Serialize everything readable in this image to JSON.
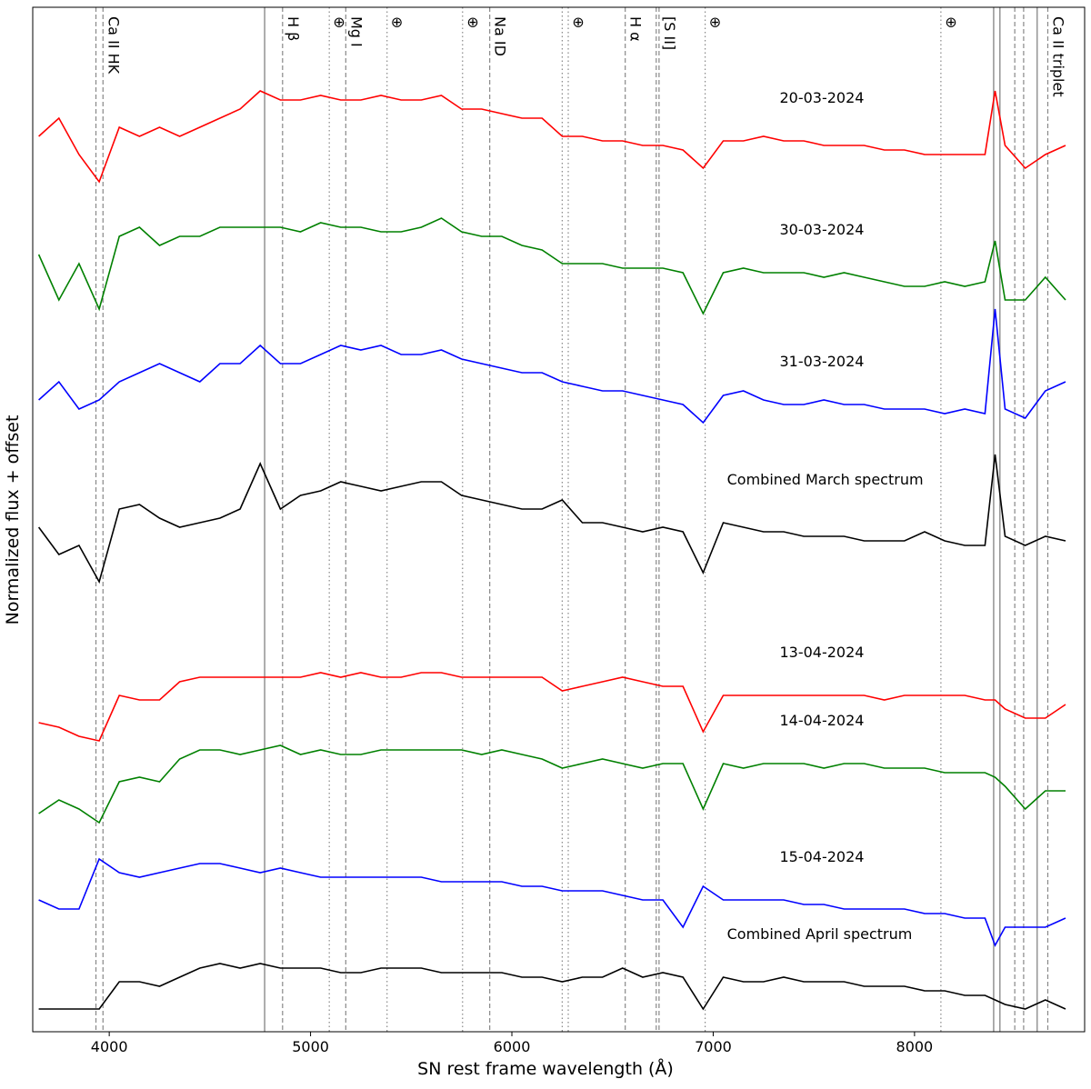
{
  "chart_data": {
    "type": "line",
    "xlabel": "SN rest frame wavelength (Å)",
    "ylabel": "Normalized flux + offset",
    "xlim": [
      3620,
      8845
    ],
    "ylim": [
      0,
      1127
    ],
    "xticks": [
      4000,
      5000,
      6000,
      7000,
      8000
    ],
    "x": [
      3650,
      3750,
      3850,
      3950,
      4050,
      4150,
      4250,
      4350,
      4450,
      4550,
      4650,
      4750,
      4850,
      4950,
      5050,
      5150,
      5250,
      5350,
      5450,
      5550,
      5650,
      5750,
      5850,
      5950,
      6050,
      6150,
      6250,
      6350,
      6450,
      6550,
      6650,
      6750,
      6850,
      6950,
      7050,
      7150,
      7250,
      7350,
      7450,
      7550,
      7650,
      7750,
      7850,
      7950,
      8050,
      8150,
      8250,
      8350,
      8400,
      8450,
      8550,
      8650,
      8750
    ],
    "series": [
      {
        "name": "20-03-2024",
        "color": "#ff0000",
        "values": [
          985,
          1005,
          965,
          935,
          995,
          985,
          995,
          985,
          995,
          1005,
          1015,
          1035,
          1025,
          1025,
          1030,
          1025,
          1025,
          1030,
          1025,
          1025,
          1030,
          1015,
          1015,
          1010,
          1005,
          1005,
          985,
          985,
          980,
          980,
          975,
          975,
          970,
          950,
          980,
          980,
          985,
          980,
          980,
          975,
          975,
          975,
          970,
          970,
          965,
          965,
          965,
          965,
          1035,
          975,
          950,
          965,
          975
        ]
      },
      {
        "name": "30-03-2024",
        "color": "#008000",
        "values": [
          855,
          805,
          845,
          795,
          875,
          885,
          865,
          875,
          875,
          885,
          885,
          885,
          885,
          880,
          890,
          885,
          885,
          880,
          880,
          885,
          895,
          880,
          875,
          875,
          865,
          860,
          845,
          845,
          845,
          840,
          840,
          840,
          835,
          790,
          835,
          840,
          835,
          835,
          835,
          830,
          835,
          830,
          825,
          820,
          820,
          825,
          820,
          825,
          870,
          805,
          805,
          830,
          805
        ]
      },
      {
        "name": "31-03-2024",
        "color": "#0000ff",
        "values": [
          695,
          715,
          685,
          695,
          715,
          725,
          735,
          725,
          715,
          735,
          735,
          755,
          735,
          735,
          745,
          755,
          750,
          755,
          745,
          745,
          750,
          740,
          735,
          730,
          725,
          725,
          715,
          710,
          705,
          705,
          700,
          695,
          690,
          670,
          700,
          705,
          695,
          690,
          690,
          695,
          690,
          690,
          685,
          685,
          685,
          680,
          685,
          680,
          795,
          685,
          675,
          705,
          715
        ]
      },
      {
        "name": "Combined March spectrum",
        "color": "#000000",
        "values": [
          555,
          525,
          535,
          495,
          575,
          580,
          565,
          555,
          560,
          565,
          575,
          625,
          575,
          590,
          595,
          605,
          600,
          595,
          600,
          605,
          605,
          590,
          585,
          580,
          575,
          575,
          585,
          560,
          560,
          555,
          550,
          555,
          550,
          505,
          560,
          555,
          550,
          550,
          545,
          545,
          545,
          540,
          540,
          540,
          550,
          540,
          535,
          535,
          635,
          545,
          535,
          545,
          540
        ]
      },
      {
        "name": "13-04-2024",
        "color": "#ff0000",
        "values": [
          340,
          335,
          325,
          320,
          370,
          365,
          365,
          385,
          390,
          390,
          390,
          390,
          390,
          390,
          395,
          390,
          395,
          390,
          390,
          395,
          395,
          390,
          390,
          390,
          390,
          390,
          375,
          380,
          385,
          390,
          385,
          380,
          380,
          330,
          370,
          370,
          370,
          370,
          370,
          370,
          370,
          370,
          365,
          370,
          370,
          370,
          370,
          365,
          365,
          355,
          345,
          345,
          360
        ]
      },
      {
        "name": "14-04-2024",
        "color": "#008000",
        "values": [
          240,
          255,
          245,
          230,
          275,
          280,
          275,
          300,
          310,
          310,
          305,
          310,
          315,
          305,
          310,
          305,
          305,
          310,
          310,
          310,
          310,
          310,
          305,
          310,
          305,
          300,
          290,
          295,
          300,
          295,
          290,
          295,
          295,
          245,
          295,
          290,
          295,
          295,
          295,
          290,
          295,
          295,
          290,
          290,
          290,
          285,
          285,
          285,
          280,
          270,
          245,
          265,
          265
        ]
      },
      {
        "name": "15-04-2024",
        "color": "#0000ff",
        "values": [
          145,
          135,
          135,
          190,
          175,
          170,
          175,
          180,
          185,
          185,
          180,
          175,
          180,
          175,
          170,
          170,
          170,
          170,
          170,
          170,
          165,
          165,
          165,
          165,
          160,
          160,
          155,
          155,
          155,
          150,
          145,
          145,
          115,
          160,
          145,
          145,
          145,
          145,
          140,
          140,
          135,
          135,
          135,
          135,
          130,
          130,
          125,
          125,
          95,
          115,
          115,
          115,
          125
        ]
      },
      {
        "name": "Combined April spectrum",
        "color": "#000000",
        "values": [
          25,
          25,
          25,
          25,
          55,
          55,
          50,
          60,
          70,
          75,
          70,
          75,
          70,
          70,
          70,
          65,
          65,
          70,
          70,
          70,
          65,
          65,
          65,
          65,
          60,
          60,
          55,
          60,
          60,
          70,
          60,
          65,
          60,
          25,
          60,
          55,
          55,
          60,
          55,
          55,
          55,
          50,
          50,
          50,
          45,
          45,
          40,
          40,
          35,
          30,
          25,
          35,
          25
        ]
      }
    ],
    "vlines": [
      {
        "x": 3934,
        "style": "dashed"
      },
      {
        "x": 3969,
        "style": "dashed",
        "label": "Ca II HK"
      },
      {
        "x": 4772,
        "style": "solid"
      },
      {
        "x": 4861,
        "style": "dashed",
        "label": "H β"
      },
      {
        "x": 5093,
        "style": "dotted",
        "label": "⊕"
      },
      {
        "x": 5175,
        "style": "dashed",
        "label": "Mg I"
      },
      {
        "x": 5380,
        "style": "dotted",
        "label": "⊕"
      },
      {
        "x": 5755,
        "style": "dotted",
        "label": "⊕"
      },
      {
        "x": 5890,
        "style": "dashed",
        "label": "Na ID"
      },
      {
        "x": 6250,
        "style": "dotted"
      },
      {
        "x": 6280,
        "style": "dotted",
        "label": "⊕"
      },
      {
        "x": 6563,
        "style": "dashed",
        "label": "H α"
      },
      {
        "x": 6717,
        "style": "dashed"
      },
      {
        "x": 6731,
        "style": "dashed",
        "label": "[S II]"
      },
      {
        "x": 6960,
        "style": "dotted",
        "label": "⊕"
      },
      {
        "x": 8131,
        "style": "dotted",
        "label": "⊕"
      },
      {
        "x": 8393,
        "style": "solid"
      },
      {
        "x": 8424,
        "style": "solid"
      },
      {
        "x": 8498,
        "style": "dashed"
      },
      {
        "x": 8542,
        "style": "dashed"
      },
      {
        "x": 8609,
        "style": "solid"
      },
      {
        "x": 8662,
        "style": "dashed",
        "label": "Ca II triplet"
      }
    ]
  }
}
